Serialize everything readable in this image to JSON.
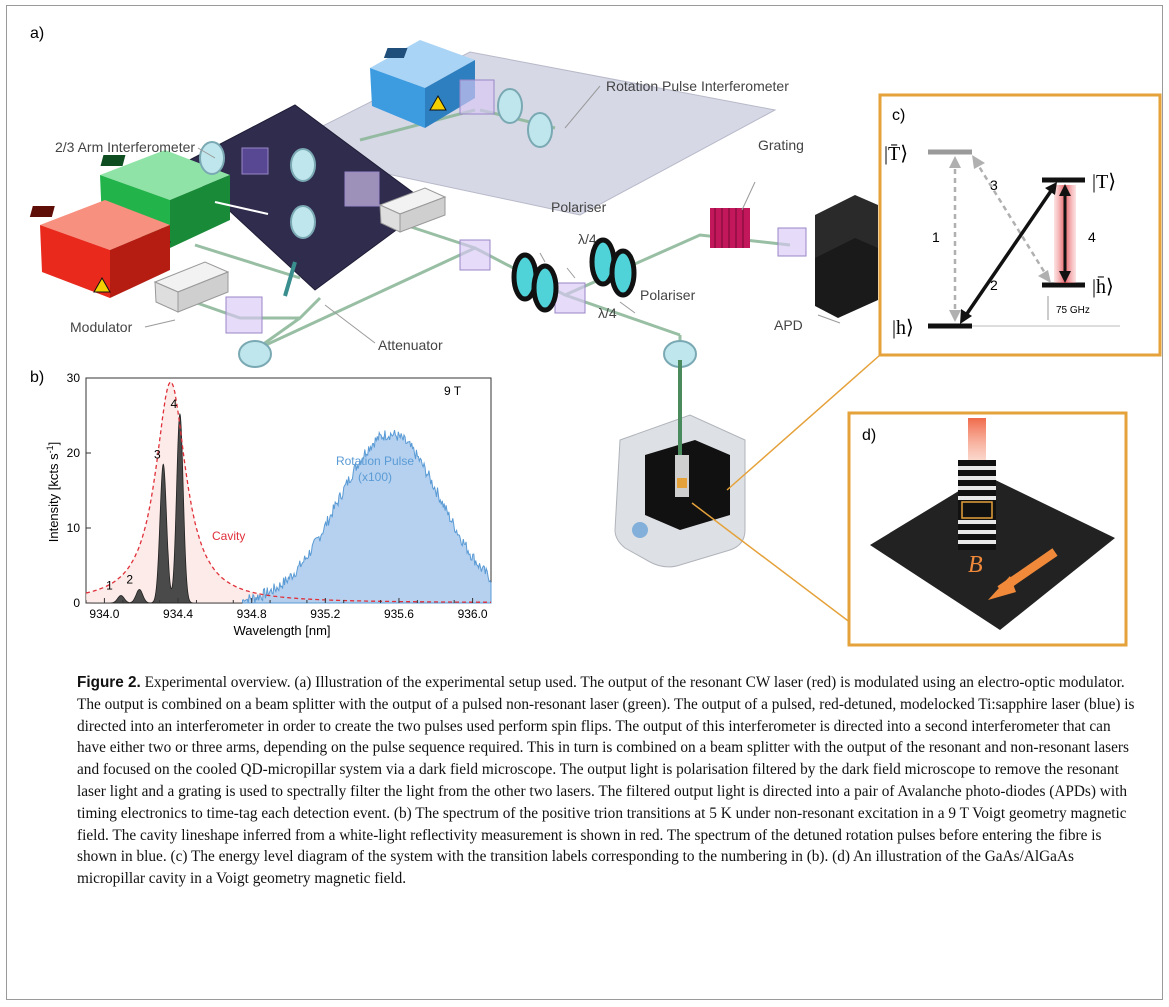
{
  "panels": {
    "a": "a)",
    "b": "b)",
    "c": "c)",
    "d": "d)"
  },
  "setup_labels": {
    "rotation_interferometer": "Rotation Pulse Interferometer",
    "arm_interferometer": "2/3 Arm Interferometer",
    "grating": "Grating",
    "polariser_top": "Polariser",
    "lambda_top": "λ/4",
    "polariser_bottom": "Polariser",
    "lambda_bottom": "λ/4",
    "modulator": "Modulator",
    "attenuator": "Attenuator",
    "apd": "APD"
  },
  "energy_diagram": {
    "states": {
      "T_bar": "|T̄⟩",
      "T": "|T⟩",
      "h_bar": "|h̄⟩",
      "h": "|h⟩"
    },
    "transitions": [
      "1",
      "2",
      "3",
      "4"
    ],
    "splitting": "75 GHz"
  },
  "micropillar": {
    "field_label": "B"
  },
  "colors": {
    "red_laser": "#e8291c",
    "green_laser": "#22b34a",
    "blue_laser": "#3d9be0",
    "panel_border": "#e5a13a",
    "cavity": "#e0303a",
    "rotation_pulse": "#5b9bd5",
    "spectrum": "#333333",
    "grating": "#c2185b"
  },
  "chart_data": {
    "type": "area",
    "field_label": "9 T",
    "xlabel": "Wavelength [nm]",
    "ylabel": "Intensity [kcts s-1]",
    "xlim": [
      933.9,
      936.1
    ],
    "ylim": [
      0,
      30
    ],
    "xticks": [
      "934.0",
      "934.4",
      "934.8",
      "935.2",
      "935.6",
      "936.0"
    ],
    "yticks": [
      "0",
      "10",
      "20",
      "30"
    ],
    "peak_labels": [
      {
        "text": "1",
        "x": 934.06,
        "y": 1.0
      },
      {
        "text": "2",
        "x": 934.17,
        "y": 1.8
      },
      {
        "text": "3",
        "x": 934.32,
        "y": 18.5
      },
      {
        "text": "4",
        "x": 934.41,
        "y": 25.2
      }
    ],
    "series": [
      {
        "name": "Cavity",
        "center": 934.36,
        "peak": 29.5,
        "width": 0.1
      },
      {
        "name": "Rotation Pulse",
        "sub": "(x100)",
        "center": 935.55,
        "peak": 22.5,
        "width": 0.28
      }
    ],
    "spectrum_peaks": [
      {
        "center": 934.09,
        "height": 1.0
      },
      {
        "center": 934.19,
        "height": 1.8
      },
      {
        "center": 934.32,
        "height": 18.5
      },
      {
        "center": 934.41,
        "height": 25.2
      }
    ]
  },
  "caption": {
    "label": "Figure 2.",
    "text": " Experimental overview. (a) Illustration of the experimental setup used. The output of the resonant CW laser (red) is modulated using an electro-optic modulator. The output is combined on a beam splitter with the output of a pulsed non-resonant laser (green). The output of a pulsed, red-detuned, modelocked Ti:sapphire laser (blue) is directed into an interferometer in order to create the two pulses used perform spin flips. The output of this interferometer is directed into a second interferometer that can have either two or three arms, depending on the pulse sequence required. This in turn is combined on a beam splitter with the output of the resonant and non-resonant lasers and focused on the cooled QD-micropillar system via a dark field microscope. The output light is polarisation filtered by the dark field microscope to remove the resonant laser light and a grating is used to spectrally filter the light from the other two lasers. The filtered output light is directed into a pair of Avalanche photo-diodes (APDs) with timing electronics to time-tag each detection event. (b) The spectrum of the positive trion transitions at 5 K under non-resonant excitation in a 9 T Voigt geometry magnetic field. The cavity lineshape inferred from a white-light reflectivity measurement is shown in red. The spectrum of the detuned rotation pulses before entering the fibre is shown in blue. (c) The energy level diagram of the system with the transition labels corresponding to the numbering in (b). (d) An illustration of the GaAs/AlGaAs micropillar cavity in a Voigt geometry magnetic field."
  }
}
